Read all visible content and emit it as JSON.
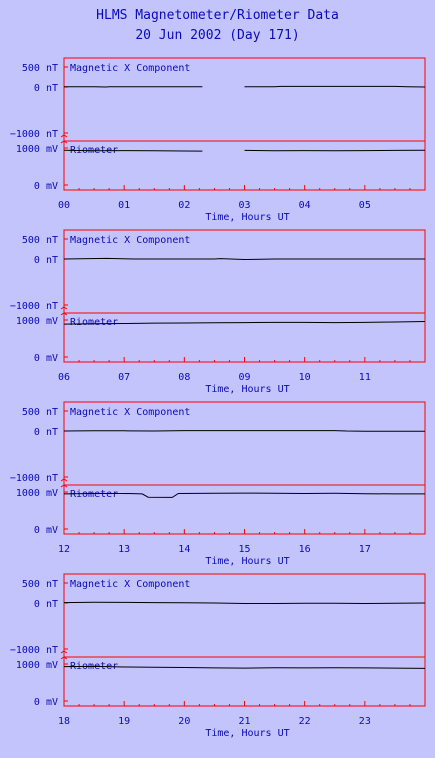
{
  "title": "HLMS Magnetometer/Riometer Data",
  "subtitle": "20 Jun 2002 (Day 171)",
  "colors": {
    "background": "#c4c4fc",
    "frame": "#ff0000",
    "text": "#0a0ab8",
    "trace": "#000000"
  },
  "chart_data": [
    {
      "type": "line",
      "xlabel": "Time, Hours UT",
      "x_ticks": [
        "00",
        "01",
        "02",
        "03",
        "04",
        "05"
      ],
      "xlim": [
        0,
        6
      ],
      "mag": {
        "label": "Magnetic X Component",
        "yticks": [
          "500 nT",
          "0 nT",
          "−1000 nT"
        ],
        "ylim": [
          -1000,
          500
        ],
        "x": [
          0.0,
          0.5,
          0.7,
          0.75,
          1.0,
          1.5,
          2.0,
          2.3,
          2.85,
          3.0,
          3.5,
          3.6,
          4.0,
          4.5,
          5.0,
          5.5,
          5.7,
          6.0
        ],
        "values": [
          5,
          5,
          0,
          5,
          5,
          5,
          5,
          5,
          null,
          5,
          5,
          15,
          15,
          15,
          15,
          15,
          5,
          0
        ]
      },
      "rio": {
        "label": "Riometer",
        "yticks": [
          "1000 mV",
          "0 mV"
        ],
        "ylim": [
          0,
          1000
        ],
        "x": [
          0.0,
          0.5,
          1.0,
          1.5,
          2.0,
          2.3,
          2.85,
          3.0,
          3.5,
          4.0,
          4.5,
          5.0,
          5.5,
          6.0
        ],
        "values": [
          940,
          925,
          930,
          925,
          920,
          915,
          null,
          935,
          925,
          930,
          925,
          930,
          935,
          940
        ]
      }
    },
    {
      "type": "line",
      "xlabel": "Time, Hours UT",
      "x_ticks": [
        "06",
        "07",
        "08",
        "09",
        "10",
        "11"
      ],
      "xlim": [
        6,
        12
      ],
      "mag": {
        "label": "Magnetic X Component",
        "yticks": [
          "500 nT",
          "0 nT",
          "−1000 nT"
        ],
        "ylim": [
          -1000,
          500
        ],
        "x": [
          6.0,
          6.7,
          7.2,
          7.5,
          8.0,
          8.5,
          8.6,
          9.0,
          9.5,
          10.0,
          10.5,
          11.0,
          11.5,
          12.0
        ],
        "values": [
          0,
          15,
          0,
          0,
          0,
          0,
          10,
          -10,
          0,
          0,
          0,
          0,
          0,
          0
        ]
      },
      "rio": {
        "label": "Riometer",
        "yticks": [
          "1000 mV",
          "0 mV"
        ],
        "ylim": [
          0,
          1000
        ],
        "x": [
          6.0,
          6.5,
          7.0,
          7.5,
          8.0,
          8.5,
          9.0,
          9.5,
          10.0,
          10.5,
          11.0,
          11.5,
          12.0
        ],
        "values": [
          890,
          900,
          905,
          915,
          920,
          925,
          930,
          935,
          935,
          930,
          935,
          945,
          960
        ]
      }
    },
    {
      "type": "line",
      "xlabel": "Time, Hours UT",
      "x_ticks": [
        "12",
        "13",
        "14",
        "15",
        "16",
        "17"
      ],
      "xlim": [
        12,
        18
      ],
      "mag": {
        "label": "Magnetic X Component",
        "yticks": [
          "500 nT",
          "0 nT",
          "−1000 nT"
        ],
        "ylim": [
          -1000,
          500
        ],
        "x": [
          12.0,
          12.5,
          13.0,
          13.5,
          14.0,
          14.5,
          15.0,
          15.5,
          16.0,
          16.5,
          16.7,
          17.0,
          17.5,
          18.0
        ],
        "values": [
          0,
          5,
          5,
          0,
          10,
          10,
          10,
          10,
          10,
          10,
          0,
          -5,
          -5,
          -5
        ]
      },
      "rio": {
        "label": "Riometer",
        "yticks": [
          "1000 mV",
          "0 mV"
        ],
        "ylim": [
          0,
          1000
        ],
        "x": [
          12.0,
          12.5,
          13.0,
          13.3,
          13.4,
          13.8,
          13.9,
          14.5,
          15.0,
          15.5,
          16.0,
          16.5,
          17.0,
          17.5,
          18.0
        ],
        "values": [
          950,
          960,
          960,
          950,
          860,
          855,
          960,
          965,
          970,
          965,
          960,
          965,
          955,
          950,
          950
        ]
      }
    },
    {
      "type": "line",
      "xlabel": "Time, Hours UT",
      "x_ticks": [
        "18",
        "19",
        "20",
        "21",
        "22",
        "23"
      ],
      "xlim": [
        18,
        24
      ],
      "mag": {
        "label": "Magnetic X Component",
        "yticks": [
          "500 nT",
          "0 nT",
          "−1000 nT"
        ],
        "ylim": [
          -1000,
          500
        ],
        "x": [
          18.0,
          18.5,
          19.0,
          19.5,
          20.0,
          20.5,
          21.0,
          21.5,
          22.0,
          22.5,
          23.0,
          23.5,
          24.0
        ],
        "values": [
          10,
          20,
          15,
          10,
          5,
          0,
          -10,
          -10,
          -5,
          -5,
          -10,
          -5,
          0
        ]
      },
      "rio": {
        "label": "Riometer",
        "yticks": [
          "1000 mV",
          "0 mV"
        ],
        "ylim": [
          0,
          1000
        ],
        "x": [
          18.0,
          18.5,
          19.0,
          19.5,
          20.0,
          20.5,
          21.0,
          21.5,
          22.0,
          22.5,
          23.0,
          23.5,
          24.0
        ],
        "values": [
          930,
          935,
          920,
          910,
          905,
          895,
          890,
          900,
          895,
          900,
          895,
          890,
          880
        ]
      }
    }
  ]
}
